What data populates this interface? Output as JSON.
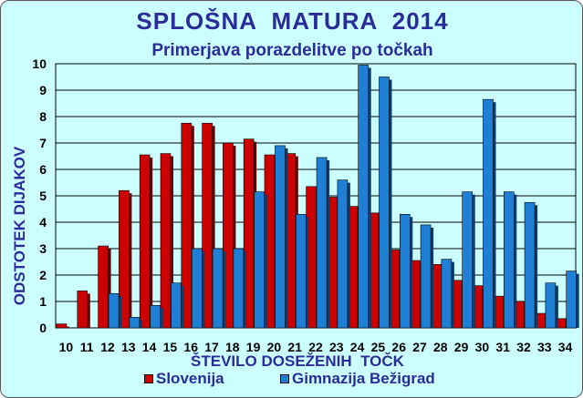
{
  "chart_data": {
    "type": "bar",
    "title": "SPLOŠNA  MATURA  2014",
    "subtitle": "Primerjava porazdelitve po točkah",
    "xlabel": "ŠTEVILO DOSEŽENIH  TOČK",
    "ylabel": "ODSTOTEK DIJAKOV",
    "ylim": [
      0,
      10
    ],
    "yticks": [
      "0",
      "1",
      "2",
      "3",
      "4",
      "5",
      "6",
      "7",
      "8",
      "9",
      "10"
    ],
    "grid": true,
    "legend_position": "bottom",
    "categories": [
      "10",
      "11",
      "12",
      "13",
      "14",
      "15",
      "16",
      "17",
      "18",
      "19",
      "20",
      "21",
      "22",
      "23",
      "24",
      "25",
      "26",
      "27",
      "28",
      "29",
      "30",
      "31",
      "32",
      "33",
      "34"
    ],
    "series": [
      {
        "name": "Slovenija",
        "color": "#cc0000",
        "values": [
          0.15,
          1.4,
          3.1,
          5.2,
          6.55,
          6.6,
          7.75,
          7.75,
          7.0,
          7.15,
          6.55,
          6.6,
          5.35,
          4.95,
          4.6,
          4.35,
          2.95,
          2.55,
          2.4,
          1.8,
          1.6,
          1.2,
          1.0,
          0.55,
          0.35
        ]
      },
      {
        "name": "Gimnazija Bežigrad",
        "color": "#1f7fd4",
        "values": [
          0,
          0,
          1.3,
          0.4,
          0.85,
          1.7,
          3.0,
          3.0,
          3.0,
          5.15,
          6.9,
          4.3,
          6.45,
          5.6,
          9.95,
          9.5,
          4.3,
          3.9,
          2.6,
          5.15,
          8.65,
          5.15,
          4.75,
          1.7,
          2.15
        ]
      }
    ]
  }
}
